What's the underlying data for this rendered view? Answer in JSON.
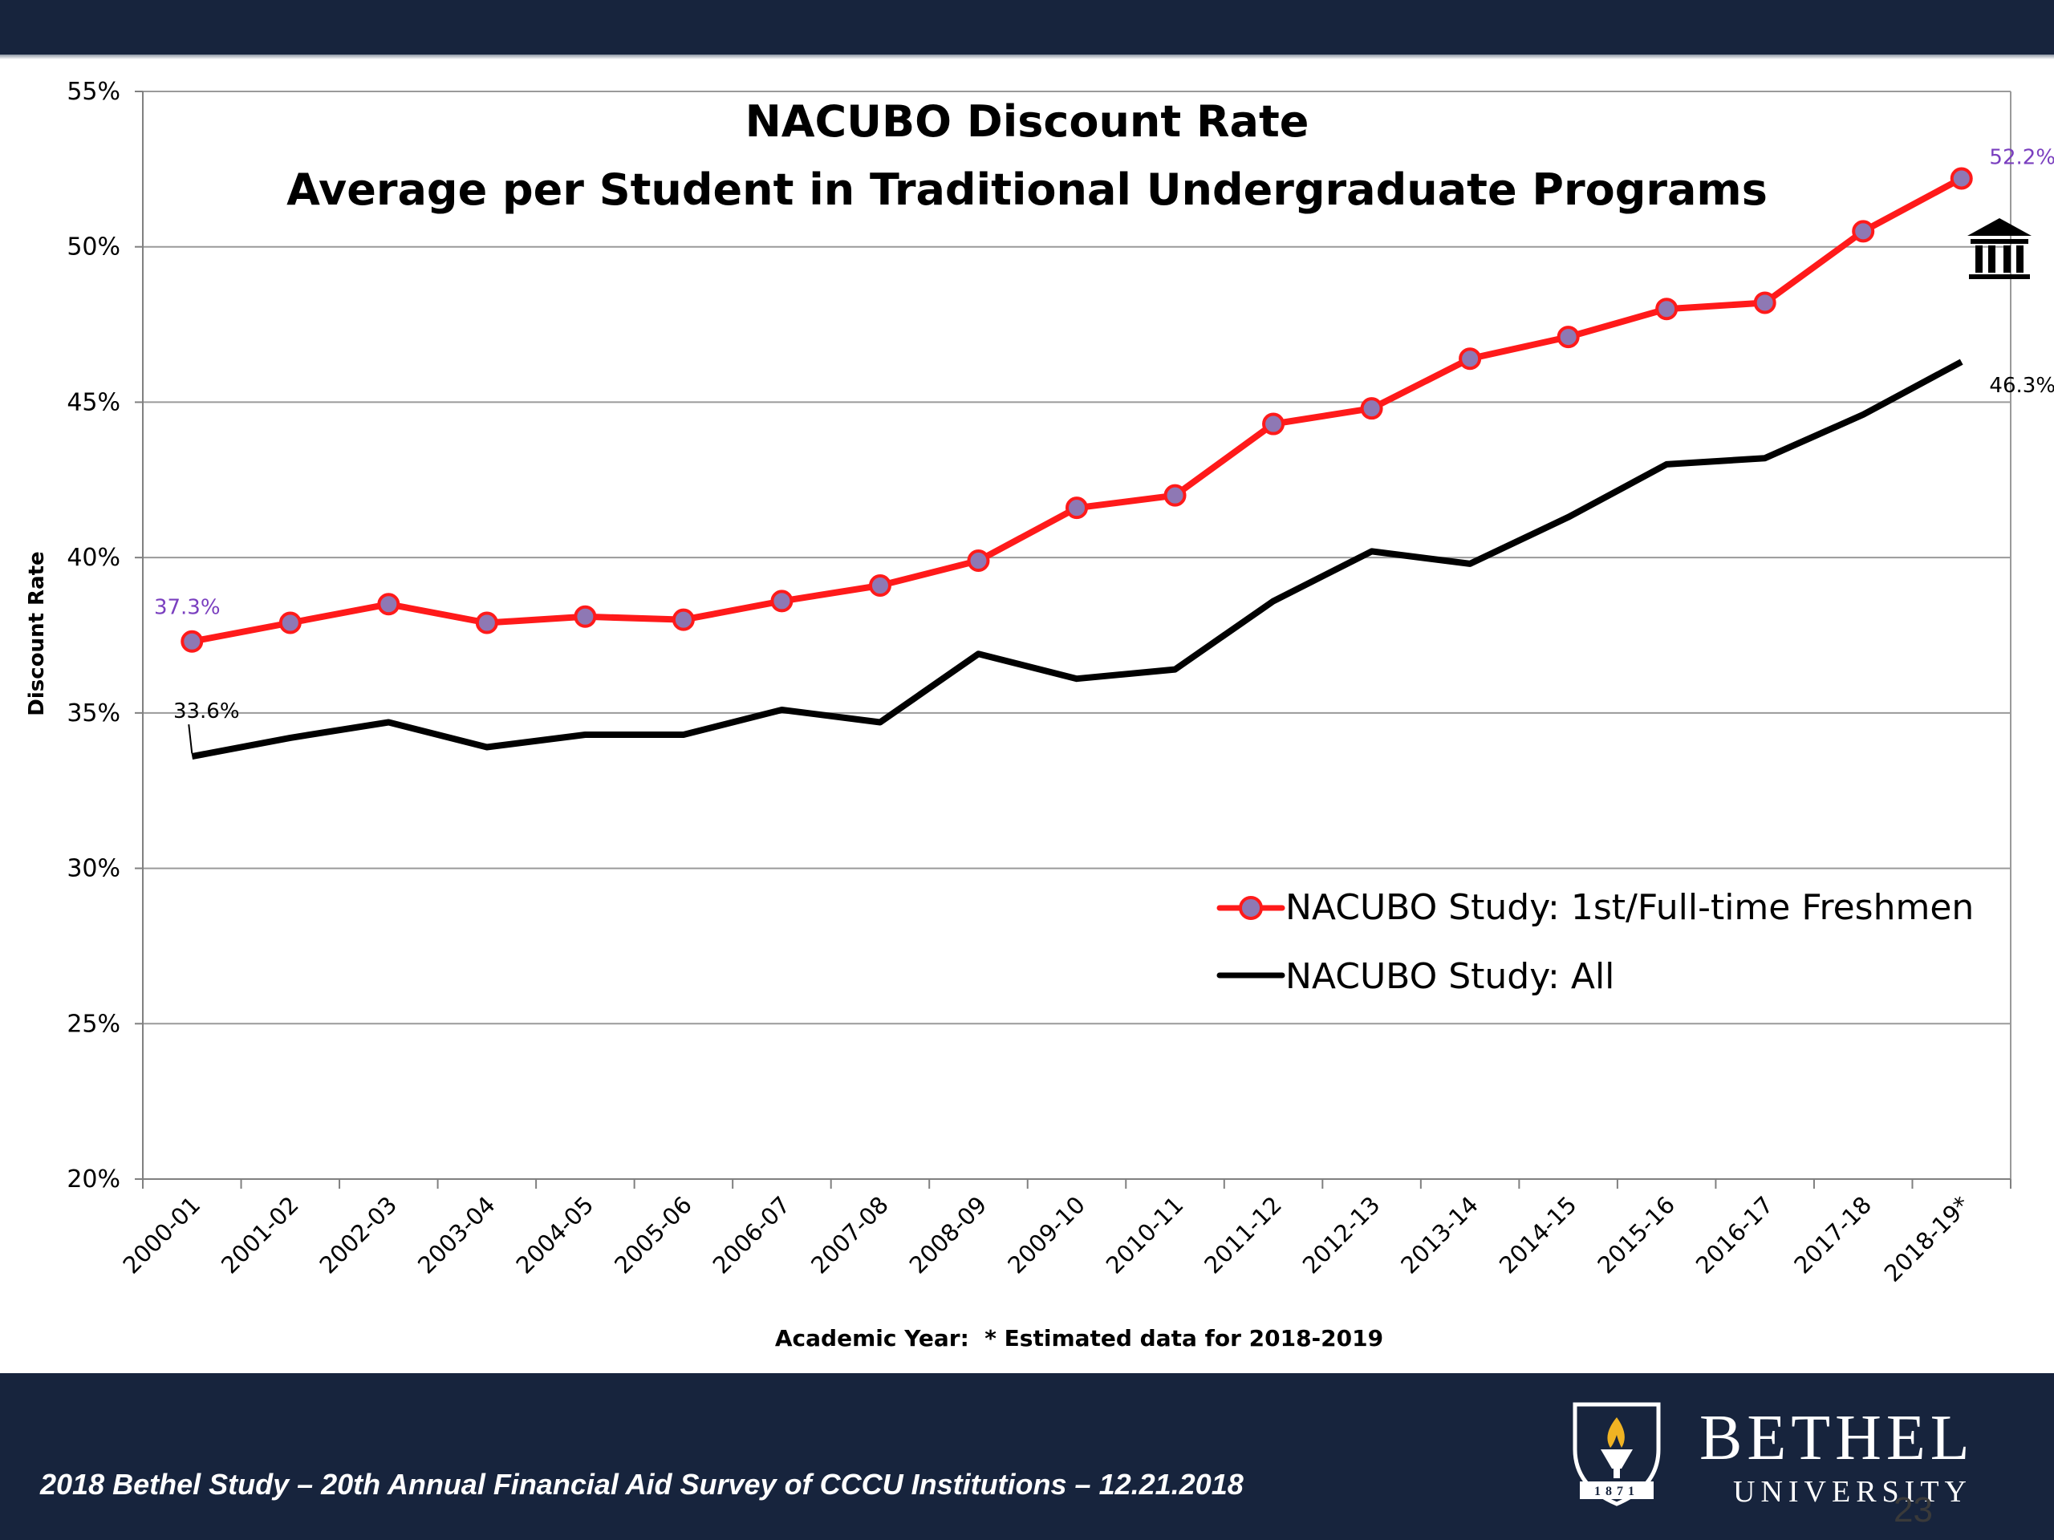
{
  "chart_data": {
    "type": "line",
    "title": "NACUBO Discount Rate",
    "subtitle": "Average per Student in Traditional Undergraduate Programs",
    "xlabel": "Academic Year:  * Estimated data for 2018-2019",
    "ylabel": "Discount Rate",
    "ylim": [
      20,
      55
    ],
    "y_ticks": [
      "20%",
      "25%",
      "30%",
      "35%",
      "40%",
      "45%",
      "50%",
      "55%"
    ],
    "grid": true,
    "legend_position": "bottom-right",
    "categories": [
      "2000-01",
      "2001-02",
      "2002-03",
      "2003-04",
      "2004-05",
      "2005-06",
      "2006-07",
      "2007-08",
      "2008-09",
      "2009-10",
      "2010-11",
      "2011-12",
      "2012-13",
      "2013-14",
      "2014-15",
      "2015-16",
      "2016-17",
      "2017-18",
      "2018-19*"
    ],
    "series": [
      {
        "name": "NACUBO Study: 1st/Full-time Freshmen",
        "color": "#ff1a1a",
        "marker_color": "#8e78b4",
        "values": [
          37.3,
          37.9,
          38.5,
          37.9,
          38.1,
          38.0,
          38.6,
          39.1,
          39.9,
          41.6,
          42.0,
          44.3,
          44.8,
          46.4,
          47.1,
          48.0,
          48.2,
          50.5,
          52.2
        ]
      },
      {
        "name": "NACUBO Study: All",
        "color": "#000000",
        "values": [
          33.6,
          34.2,
          34.7,
          33.9,
          34.3,
          34.3,
          35.1,
          34.7,
          36.9,
          36.1,
          36.4,
          38.6,
          40.2,
          39.8,
          41.3,
          43.0,
          43.2,
          44.6,
          46.3
        ]
      }
    ],
    "annotations": {
      "freshmen_first": "37.3%",
      "freshmen_last": "52.2%",
      "all_first": "33.6%",
      "all_last": "46.3%"
    },
    "annotation_colors": {
      "freshmen": "#7a3fbf",
      "all": "#000000"
    },
    "institution_icon": "bank-building-icon"
  },
  "footer": {
    "caption": "2018 Bethel Study – 20th Annual Financial Aid Survey of CCCU Institutions – 12.21.2018",
    "brand_name": "BETHEL",
    "brand_sub": "UNIVERSITY",
    "logo_year": "1871",
    "logo_icon": "torch-shield-icon",
    "page_number": "23"
  },
  "colors": {
    "navy": "#17243d",
    "gold": "#f0b323"
  }
}
